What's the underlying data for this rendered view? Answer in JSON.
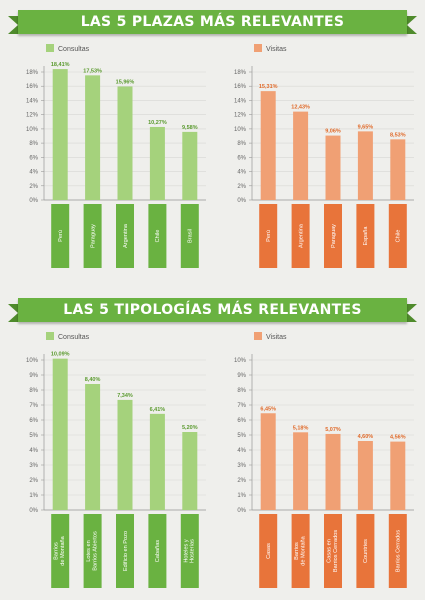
{
  "sections": [
    {
      "title": "LAS 5 PLAZAS MÁS RELEVANTES"
    },
    {
      "title": "LAS 5 TIPOLOGÍAS MÁS RELEVANTES"
    }
  ],
  "colors": {
    "green_bar": "#a5d27c",
    "green_label": "#6ab241",
    "green_value": "#5a9a2e",
    "orange_bar": "#f0a074",
    "orange_label": "#e8743a",
    "orange_value": "#e06a2a",
    "axis": "#999999",
    "grid": "#d8d8d4"
  },
  "chart_data": [
    {
      "type": "bar",
      "legend": "Consultas",
      "color": "green",
      "categories": [
        "Perú",
        "Paraguay",
        "Argentina",
        "Chile",
        "Brasil"
      ],
      "values": [
        18.41,
        17.53,
        15.96,
        10.27,
        9.58
      ],
      "value_labels": [
        "18,41%",
        "17,53%",
        "15,96%",
        "10,27%",
        "9,58%"
      ],
      "yticks": [
        "0%",
        "2%",
        "4%",
        "6%",
        "8%",
        "10%",
        "12%",
        "14%",
        "16%",
        "18%"
      ],
      "ylim": [
        0,
        18
      ]
    },
    {
      "type": "bar",
      "legend": "Visitas",
      "color": "orange",
      "categories": [
        "Perú",
        "Argentina",
        "Paraguay",
        "España",
        "Chile"
      ],
      "values": [
        15.31,
        12.43,
        9.06,
        9.65,
        8.53
      ],
      "value_labels": [
        "15,31%",
        "12,43%",
        "9,06%",
        "9,65%",
        "8,53%"
      ],
      "yticks": [
        "0%",
        "2%",
        "4%",
        "6%",
        "8%",
        "10%",
        "12%",
        "14%",
        "16%",
        "18%"
      ],
      "ylim": [
        0,
        18
      ]
    },
    {
      "type": "bar",
      "legend": "Consultas",
      "color": "green",
      "categories": [
        "Barrios de Montaña",
        "Lotes en Barrios Abiertos",
        "Edificio en Pozo",
        "Cabañas",
        "Hoteles y Hosterías"
      ],
      "values": [
        10.09,
        8.4,
        7.34,
        6.41,
        5.2
      ],
      "value_labels": [
        "10,09%",
        "8,40%",
        "7,34%",
        "6,41%",
        "5,20%"
      ],
      "yticks": [
        "0%",
        "1%",
        "2%",
        "3%",
        "4%",
        "5%",
        "6%",
        "7%",
        "8%",
        "9%",
        "10%"
      ],
      "ylim": [
        0,
        10
      ]
    },
    {
      "type": "bar",
      "legend": "Visitas",
      "color": "orange",
      "categories": [
        "Casas",
        "Barrios de Montaña",
        "Casas en Barrios Cerrados",
        "Countries",
        "Barrios Cerrados"
      ],
      "values": [
        6.45,
        5.18,
        5.07,
        4.6,
        4.56
      ],
      "value_labels": [
        "6,45%",
        "5,18%",
        "5,07%",
        "4,60%",
        "4,56%"
      ],
      "yticks": [
        "0%",
        "1%",
        "2%",
        "3%",
        "4%",
        "5%",
        "6%",
        "7%",
        "8%",
        "9%",
        "10%"
      ],
      "ylim": [
        0,
        10
      ]
    }
  ]
}
